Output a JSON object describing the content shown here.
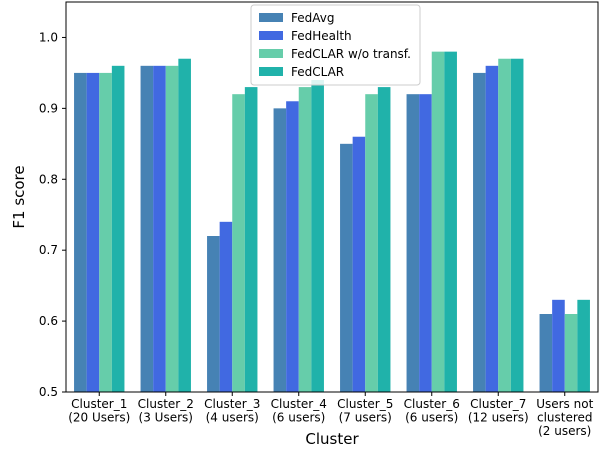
{
  "chart_data": {
    "type": "bar",
    "title": "",
    "xlabel": "Cluster",
    "ylabel": "F1 score",
    "ylim": [
      0.5,
      1.05
    ],
    "yticks": [
      0.5,
      0.6,
      0.7,
      0.8,
      0.9,
      1.0
    ],
    "ytick_labels": [
      "0.5",
      "0.6",
      "0.7",
      "0.8",
      "0.9",
      "1.0"
    ],
    "categories": [
      [
        "Cluster_1",
        "(20 Users)"
      ],
      [
        "Cluster_2",
        "(3 Users)"
      ],
      [
        "Cluster_3",
        "(4 users)"
      ],
      [
        "Cluster_4",
        "(6 users)"
      ],
      [
        "Cluster_5",
        "(7 users)"
      ],
      [
        "Cluster_6",
        "(6 users)"
      ],
      [
        "Cluster_7",
        "(12 users)"
      ],
      [
        "Users not",
        "clustered",
        "(2 users)"
      ]
    ],
    "series": [
      {
        "name": "FedAvg",
        "color": "#4682b4",
        "values": [
          0.95,
          0.96,
          0.72,
          0.9,
          0.85,
          0.92,
          0.95,
          0.61
        ]
      },
      {
        "name": "FedHealth",
        "color": "#4169e1",
        "values": [
          0.95,
          0.96,
          0.74,
          0.91,
          0.86,
          0.92,
          0.96,
          0.63
        ]
      },
      {
        "name": "FedCLAR w/o transf.",
        "color": "#66cdaa",
        "values": [
          0.95,
          0.96,
          0.92,
          0.93,
          0.92,
          0.98,
          0.97,
          0.61
        ]
      },
      {
        "name": "FedCLAR",
        "color": "#20b2aa",
        "values": [
          0.96,
          0.97,
          0.93,
          0.94,
          0.93,
          0.98,
          0.97,
          0.63
        ]
      }
    ],
    "grid": false,
    "legend_position": "top-center"
  }
}
